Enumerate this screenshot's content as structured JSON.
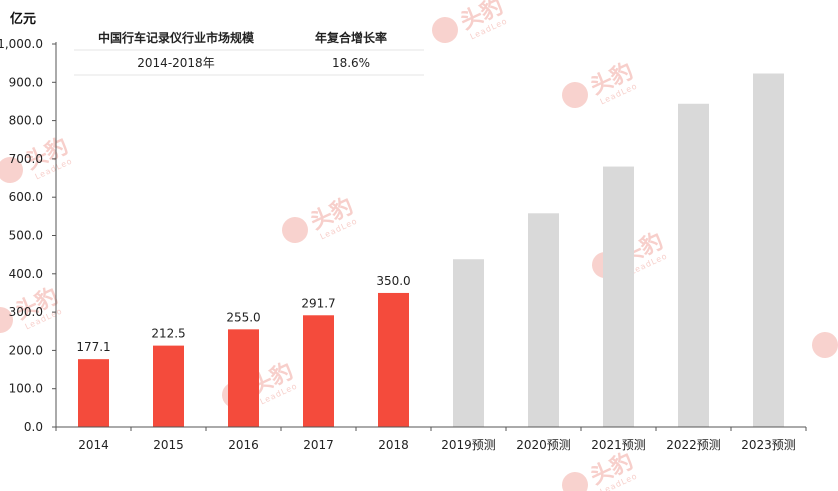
{
  "chart_data": {
    "type": "bar",
    "unit_label": "亿元",
    "categories": [
      "2014",
      "2015",
      "2016",
      "2017",
      "2018",
      "2019预测",
      "2020预测",
      "2021预测",
      "2022预测",
      "2023预测"
    ],
    "values": [
      177.1,
      212.5,
      255.0,
      291.7,
      350.0,
      438.0,
      558.0,
      680.0,
      844.0,
      923.0
    ],
    "data_labels": [
      "177.1",
      "212.5",
      "255.0",
      "291.7",
      "350.0",
      "",
      "",
      "",
      "",
      ""
    ],
    "bar_kind": [
      "actual",
      "actual",
      "actual",
      "actual",
      "actual",
      "forecast",
      "forecast",
      "forecast",
      "forecast",
      "forecast"
    ],
    "ylim": [
      0,
      1000
    ],
    "yticks": [
      0,
      100,
      200,
      300,
      400,
      500,
      600,
      700,
      800,
      900,
      1000
    ],
    "ytick_labels": [
      "0.0",
      "100.0",
      "200.0",
      "300.0",
      "400.0",
      "500.0",
      "600.0",
      "700.0",
      "800.0",
      "900.0",
      "1,000.0"
    ],
    "grid": false,
    "colors": {
      "actual": "#f44b3c",
      "forecast": "#d9d9d9",
      "axis": "#555555"
    }
  },
  "summary_table": {
    "headers": [
      "中国行车记录仪行业市场规模",
      "年复合增长率"
    ],
    "rows": [
      [
        "2014-2018年",
        "18.6%"
      ]
    ]
  },
  "watermark": {
    "text": "头豹",
    "sub": "LeadLeo",
    "color": "#f6c7c2"
  }
}
